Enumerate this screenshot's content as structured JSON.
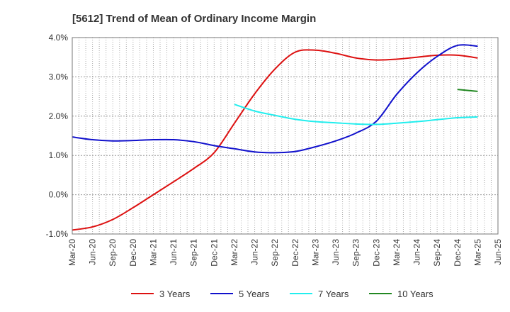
{
  "chart_data": {
    "type": "line",
    "title": "[5612]  Trend of Mean of Ordinary Income Margin",
    "xlabel": "",
    "ylabel": "",
    "y_tick_labels": [
      "4.0%",
      "3.0%",
      "2.0%",
      "1.0%",
      "0.0%",
      "-1.0%"
    ],
    "y_ticks": [
      4.0,
      3.0,
      2.0,
      1.0,
      0.0,
      -1.0
    ],
    "ylim": [
      -1.0,
      4.0
    ],
    "x_tick_labels": [
      "Mar-20",
      "Jun-20",
      "Sep-20",
      "Dec-20",
      "Mar-21",
      "Jun-21",
      "Sep-21",
      "Dec-21",
      "Mar-22",
      "Jun-22",
      "Sep-22",
      "Dec-22",
      "Mar-23",
      "Jun-23",
      "Sep-23",
      "Dec-23",
      "Mar-24",
      "Jun-24",
      "Sep-24",
      "Dec-24",
      "Mar-25",
      "Jun-25"
    ],
    "grid": true,
    "legend_position": "bottom",
    "series": [
      {
        "name": "3 Years",
        "color": "#dd1111",
        "x": [
          "Mar-20",
          "Jun-20",
          "Sep-20",
          "Dec-20",
          "Mar-21",
          "Jun-21",
          "Sep-21",
          "Dec-21",
          "Mar-22",
          "Jun-22",
          "Sep-22",
          "Dec-22",
          "Mar-23",
          "Jun-23",
          "Sep-23",
          "Dec-23",
          "Mar-24",
          "Jun-24",
          "Sep-24",
          "Dec-24",
          "Mar-25"
        ],
        "values": [
          -0.9,
          -0.82,
          -0.63,
          -0.33,
          0.0,
          0.33,
          0.67,
          1.07,
          1.82,
          2.57,
          3.2,
          3.63,
          3.68,
          3.6,
          3.48,
          3.43,
          3.45,
          3.5,
          3.55,
          3.55,
          3.48
        ]
      },
      {
        "name": "5 Years",
        "color": "#1111cc",
        "x": [
          "Mar-20",
          "Jun-20",
          "Sep-20",
          "Dec-20",
          "Mar-21",
          "Jun-21",
          "Sep-21",
          "Dec-21",
          "Mar-22",
          "Jun-22",
          "Sep-22",
          "Dec-22",
          "Mar-23",
          "Jun-23",
          "Sep-23",
          "Dec-23",
          "Mar-24",
          "Jun-24",
          "Sep-24",
          "Dec-24",
          "Mar-25"
        ],
        "values": [
          1.47,
          1.4,
          1.37,
          1.38,
          1.4,
          1.4,
          1.35,
          1.25,
          1.17,
          1.09,
          1.07,
          1.1,
          1.22,
          1.37,
          1.57,
          1.87,
          2.55,
          3.1,
          3.52,
          3.8,
          3.78
        ]
      },
      {
        "name": "7 Years",
        "color": "#22eeee",
        "x": [
          "Mar-22",
          "Jun-22",
          "Sep-22",
          "Dec-22",
          "Mar-23",
          "Jun-23",
          "Sep-23",
          "Dec-23",
          "Mar-24",
          "Jun-24",
          "Sep-24",
          "Dec-24",
          "Mar-25"
        ],
        "values": [
          2.3,
          2.13,
          2.02,
          1.92,
          1.86,
          1.83,
          1.8,
          1.79,
          1.82,
          1.86,
          1.91,
          1.96,
          1.98
        ]
      },
      {
        "name": "10 Years",
        "color": "#228822",
        "x": [
          "Dec-24",
          "Mar-25"
        ],
        "values": [
          2.68,
          2.63
        ]
      }
    ]
  }
}
